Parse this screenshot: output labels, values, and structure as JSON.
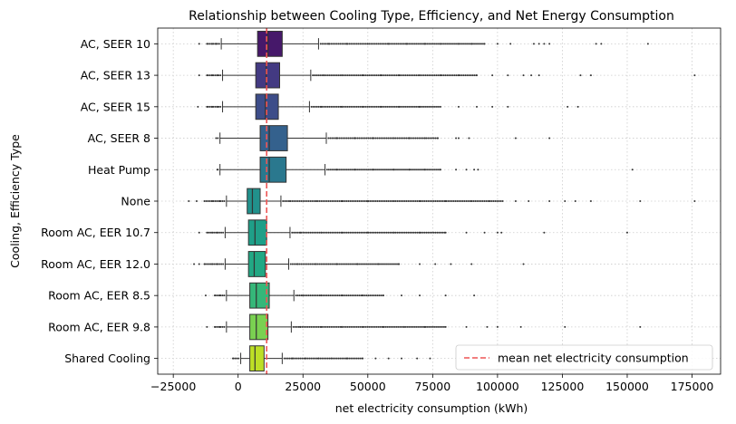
{
  "chart_data": {
    "type": "box",
    "title": "Relationship between Cooling Type, Efficiency, and Net Energy Consumption",
    "xlabel": "net electricity consumption (kWh)",
    "ylabel": "Cooling, Efficiency Type",
    "xlim": [
      -31000,
      186000
    ],
    "xticks": [
      -25000,
      0,
      25000,
      50000,
      75000,
      100000,
      125000,
      150000,
      175000
    ],
    "xtick_labels": [
      "−25000",
      "0",
      "25000",
      "50000",
      "75000",
      "100000",
      "125000",
      "150000",
      "175000"
    ],
    "grid": true,
    "legend_position": "lower-right",
    "mean_line": {
      "label": "mean net electricity consumption",
      "value": 11000,
      "color": "#ee5555"
    },
    "categories": [
      {
        "name": "AC, SEER 10",
        "q1": 7500,
        "median": 11500,
        "q3": 17000,
        "wlo": -6500,
        "whi": 31000,
        "color": "#46186a",
        "outliers": [
          -15000,
          -12000,
          -10000,
          -8500,
          35000,
          42000,
          50000,
          58000,
          65000,
          72000,
          78000,
          85000,
          90000,
          95000,
          100000,
          105000,
          114000,
          116000,
          118000,
          120000,
          138000,
          140000,
          158000
        ]
      },
      {
        "name": "AC, SEER 13",
        "q1": 6800,
        "median": 10800,
        "q3": 16000,
        "wlo": -6000,
        "whi": 28000,
        "color": "#433a82",
        "outliers": [
          -15000,
          -12000,
          -10000,
          -8000,
          33000,
          40000,
          48000,
          55000,
          62000,
          70000,
          78000,
          85000,
          92000,
          98000,
          104000,
          110000,
          113000,
          116000,
          132000,
          136000,
          176000
        ]
      },
      {
        "name": "AC, SEER 15",
        "q1": 6800,
        "median": 10500,
        "q3": 15500,
        "wlo": -6000,
        "whi": 27500,
        "color": "#3d4d89",
        "outliers": [
          -15500,
          -12000,
          -10000,
          -8000,
          32000,
          40000,
          48000,
          55000,
          62000,
          70000,
          78000,
          85000,
          92000,
          98000,
          104000,
          127000,
          131000
        ]
      },
      {
        "name": "AC, SEER 8",
        "q1": 8500,
        "median": 12000,
        "q3": 19000,
        "wlo": -7000,
        "whi": 34000,
        "color": "#34618d",
        "outliers": [
          -8500,
          38000,
          45000,
          52000,
          60000,
          66000,
          72000,
          77000,
          84000,
          85000,
          89000,
          107000,
          120000
        ]
      },
      {
        "name": "Heat Pump",
        "q1": 8500,
        "median": 12000,
        "q3": 18500,
        "wlo": -7000,
        "whi": 33500,
        "color": "#2a788e",
        "outliers": [
          -8000,
          38000,
          45000,
          52000,
          60000,
          66000,
          72000,
          78000,
          84000,
          88000,
          91000,
          92500,
          152000
        ]
      },
      {
        "name": "None",
        "q1": 3500,
        "median": 5500,
        "q3": 8500,
        "wlo": -4500,
        "whi": 16500,
        "color": "#21918c",
        "outliers": [
          -19000,
          -16000,
          -13000,
          -10000,
          -7000,
          20000,
          30000,
          40000,
          50000,
          60000,
          70000,
          80000,
          90000,
          97000,
          102000,
          107000,
          112000,
          120000,
          126000,
          130000,
          136000,
          155000,
          176000
        ]
      },
      {
        "name": "Room AC, EER 10.7",
        "q1": 4000,
        "median": 6500,
        "q3": 11000,
        "wlo": -5000,
        "whi": 20000,
        "color": "#1f9f88",
        "outliers": [
          -15000,
          -12000,
          -10000,
          -8000,
          24000,
          32000,
          40000,
          50000,
          60000,
          70000,
          80000,
          88000,
          95000,
          100000,
          101500,
          118000,
          150000
        ]
      },
      {
        "name": "Room AC, EER 12.0",
        "q1": 4000,
        "median": 6200,
        "q3": 10500,
        "wlo": -5000,
        "whi": 19500,
        "color": "#22a884",
        "outliers": [
          -17000,
          -15000,
          -13000,
          -10000,
          -8000,
          23000,
          30000,
          38000,
          46000,
          54000,
          62000,
          70000,
          76000,
          82000,
          90000,
          110000
        ]
      },
      {
        "name": "Room AC, EER 8.5",
        "q1": 4500,
        "median": 7000,
        "q3": 12000,
        "wlo": -4500,
        "whi": 21500,
        "color": "#35b779",
        "outliers": [
          -12500,
          -9000,
          -7000,
          25000,
          32000,
          40000,
          48000,
          56000,
          63000,
          70000,
          80000,
          91000
        ]
      },
      {
        "name": "Room AC, EER 9.8",
        "q1": 4500,
        "median": 7000,
        "q3": 11500,
        "wlo": -4500,
        "whi": 20500,
        "color": "#7ad151",
        "outliers": [
          -12000,
          -9000,
          -7000,
          24000,
          32000,
          40000,
          48000,
          56000,
          64000,
          72000,
          80000,
          88000,
          96000,
          100000,
          109000,
          126000,
          155000
        ]
      },
      {
        "name": "Shared Cooling",
        "q1": 4500,
        "median": 6500,
        "q3": 10000,
        "wlo": 1000,
        "whi": 17000,
        "color": "#bddf26",
        "outliers": [
          -2000,
          21000,
          26000,
          31000,
          36000,
          42000,
          48000,
          53000,
          58000,
          63000,
          69000,
          74000
        ]
      }
    ]
  }
}
